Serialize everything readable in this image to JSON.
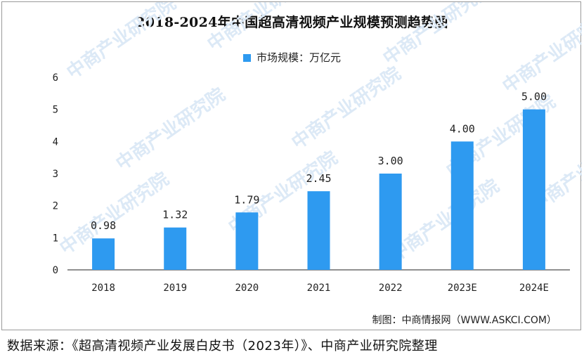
{
  "chart_data": {
    "type": "bar",
    "title": "2018-2024年中国超高清视频产业规模预测趋势图",
    "legend": {
      "label": "市场规模：万亿元",
      "position": "top-center"
    },
    "categories": [
      "2018",
      "2019",
      "2020",
      "2021",
      "2022",
      "2023E",
      "2024E"
    ],
    "series": [
      {
        "name": "市场规模：万亿元",
        "values": [
          0.98,
          1.32,
          1.79,
          2.45,
          3.0,
          4.0,
          5.0
        ],
        "labels": [
          "0.98",
          "1.32",
          "1.79",
          "2.45",
          "3.00",
          "4.00",
          "5.00"
        ]
      }
    ],
    "yticks": [
      "0",
      "1",
      "2",
      "3",
      "4",
      "5",
      "6"
    ],
    "ylim": [
      0,
      6
    ],
    "grid": false,
    "color": "#2e9af0"
  },
  "credit": "制图：中商情报网（WWW.ASKCI.COM）",
  "source": "数据来源：《超高清视频产业发展白皮书（2023年）》、中商产业研究院整理",
  "watermark": "中商产业研究院"
}
